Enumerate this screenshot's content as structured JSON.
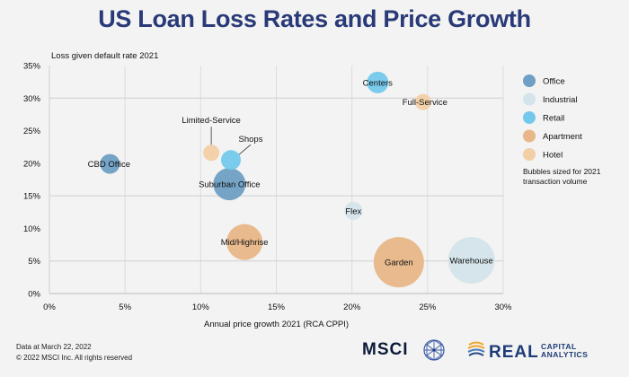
{
  "chart_data": {
    "type": "scatter",
    "subtype": "bubble",
    "title": "US Loan Loss Rates and Price Growth",
    "xlabel": "Annual price growth 2021 (RCA CPPI)",
    "ylabel": "Loss given default rate 2021",
    "xlim": [
      0,
      30
    ],
    "ylim": [
      0,
      35
    ],
    "x_ticks": [
      0,
      5,
      10,
      15,
      20,
      25,
      30
    ],
    "y_ticks": [
      0,
      5,
      10,
      15,
      20,
      25,
      30,
      35
    ],
    "x_tick_labels": [
      "0%",
      "5%",
      "10%",
      "15%",
      "20%",
      "25%",
      "30%"
    ],
    "y_tick_labels": [
      "0%",
      "5%",
      "10%",
      "15%",
      "20%",
      "25%",
      "30%",
      "35%"
    ],
    "grid": true,
    "legend_position": "right",
    "legend": [
      {
        "name": "Office",
        "color": "#6f9fc4"
      },
      {
        "name": "Industrial",
        "color": "#d3e4ea"
      },
      {
        "name": "Retail",
        "color": "#74c8ec"
      },
      {
        "name": "Apartment",
        "color": "#e8b688"
      },
      {
        "name": "Hotel",
        "color": "#f2cfa6"
      }
    ],
    "legend_note": [
      "Bubbles sized for 2021",
      "transaction volume"
    ],
    "points": [
      {
        "label": "CBD Office",
        "sector": "Office",
        "x": 4.0,
        "y": 19.9,
        "size": 11
      },
      {
        "label": "Suburban Office",
        "sector": "Office",
        "x": 11.9,
        "y": 16.8,
        "size": 18
      },
      {
        "label": "Flex",
        "sector": "Industrial",
        "x": 20.1,
        "y": 12.7,
        "size": 10
      },
      {
        "label": "Warehouse",
        "sector": "Industrial",
        "x": 27.9,
        "y": 5.1,
        "size": 26
      },
      {
        "label": "Shops",
        "sector": "Retail",
        "x": 12.0,
        "y": 20.5,
        "size": 11
      },
      {
        "label": "Centers",
        "sector": "Retail",
        "x": 21.7,
        "y": 32.4,
        "size": 12
      },
      {
        "label": "Mid/Highrise",
        "sector": "Apartment",
        "x": 12.9,
        "y": 7.9,
        "size": 20
      },
      {
        "label": "Garden",
        "sector": "Apartment",
        "x": 23.1,
        "y": 4.8,
        "size": 28
      },
      {
        "label": "Limited-Service",
        "sector": "Hotel",
        "x": 10.7,
        "y": 21.6,
        "size": 9
      },
      {
        "label": "Full-Service",
        "sector": "Hotel",
        "x": 24.7,
        "y": 29.4,
        "size": 9
      }
    ]
  },
  "footer": {
    "line1": "Data at March 22, 2022",
    "line2": "© 2022 MSCI Inc. All rights reserved"
  },
  "logos": {
    "msci": "MSCI",
    "rca_main": "REAL",
    "rca_top": "CAPITAL",
    "rca_bottom": "ANALYTICS"
  }
}
